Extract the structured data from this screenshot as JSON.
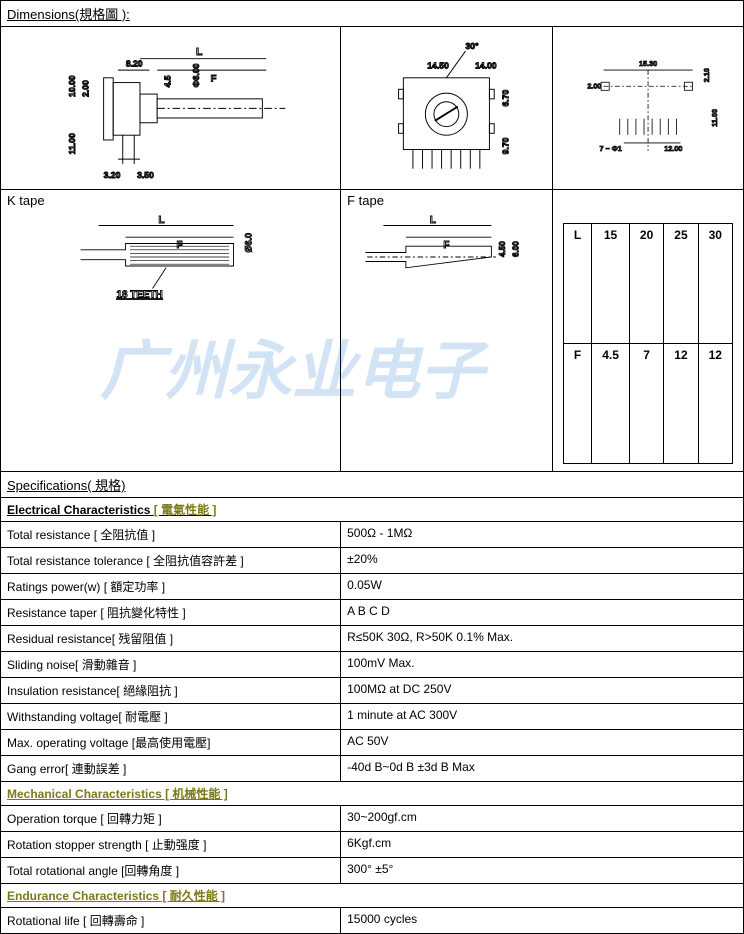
{
  "sections": {
    "dimensions_title": "Dimensions(規格圖 ):",
    "specifications_title": "Specifications( 規格)"
  },
  "watermark": "广州永业电子",
  "tapes": {
    "k_label": "K tape",
    "f_label": "F tape",
    "k_teeth": "18 TEETH"
  },
  "diagram_top": {
    "left": {
      "L": "L",
      "F": "F",
      "d8_20": "8.20",
      "d10_00": "10.00",
      "d2_00": "2.00",
      "d4_5": "4.5",
      "d6_00": "Φ6.00",
      "d11_00": "11.00",
      "d3_20": "3.20",
      "d3_50": "3.50"
    },
    "mid": {
      "d30": "30°",
      "d14_50": "14.50",
      "d14_00": "14.00",
      "d6_70": "6.70",
      "d9_70": "9.70"
    },
    "right": {
      "d15_30": "15.30",
      "d2_10": "2.10",
      "d2_00": "2.00",
      "d11_00": "11.00",
      "d12_00": "12.00",
      "phi": "7 − Φ1"
    }
  },
  "diagram_tape": {
    "k": {
      "L": "L",
      "F": "F",
      "d6_0": "Ø6.0"
    },
    "f": {
      "L": "L",
      "F": "F",
      "d4_50": "4.50",
      "d6_00": "6.00"
    }
  },
  "lf_table": {
    "headers": [
      "L",
      "15",
      "20",
      "25",
      "30"
    ],
    "row": [
      "F",
      "4.5",
      "7",
      "12",
      "12"
    ]
  },
  "spec_groups": {
    "electrical": {
      "title": "Electrical Characteristics [ 電氣性能 ]"
    },
    "mechanical": {
      "title": "Mechanical Characteristics [ 机械性能 ]"
    },
    "endurance": {
      "title": "Endurance Characteristics [ 耐久性能 ]"
    }
  },
  "specs": {
    "total_resistance": {
      "param": "Total resistance [ 全阻抗值 ]",
      "value": "500Ω - 1MΩ"
    },
    "tolerance": {
      "param": "Total resistance tolerance [ 全阻抗值容許差 ]",
      "value": "±20%"
    },
    "power": {
      "param": "Ratings power(w) [ 額定功率 ]",
      "value": "0.05W"
    },
    "taper": {
      "param": "Resistance taper [ 阻抗變化特性 ]",
      "value": "A  B  C  D"
    },
    "residual": {
      "param": "Residual resistance[ 残留阻值 ]",
      "value": "R≤50K  30Ω, R>50K  0.1% Max."
    },
    "sliding": {
      "param": "Sliding noise[ 滑動雜音 ]",
      "value": "100mV  Max."
    },
    "insulation": {
      "param": "Insulation resistance[ 絕緣阻抗 ]",
      "value": "100MΩ at DC 250V"
    },
    "withstand": {
      "param": "Withstanding voltage[ 耐電壓 ]",
      "value": "1 minute at AC 300V"
    },
    "max_op": {
      "param": "Max. operating voltage [最高使用電壓]",
      "value": "AC 50V"
    },
    "gang": {
      "param": "Gang error[ 連動誤差 ]",
      "value": "-40d B~0d B   ±3d B Max"
    },
    "torque": {
      "param": "Operation torque [ 回轉力矩 ]",
      "value": "30~200gf.cm"
    },
    "stopper": {
      "param": "Rotation stopper strength [ 止動强度 ]",
      "value": "6Kgf.cm"
    },
    "angle": {
      "param": "Total rotational angle [回轉角度 ]",
      "value": "300° ±5°"
    },
    "life": {
      "param": "Rotational life [ 回轉壽命 ]",
      "value": "15000 cycles"
    }
  },
  "style": {
    "border_color": "#000000",
    "text_color": "#000000",
    "olive_color": "#7a7a1a",
    "watermark_color": "rgba(0,100,200,0.18)",
    "font_size_body": 12,
    "font_size_header": 13
  }
}
